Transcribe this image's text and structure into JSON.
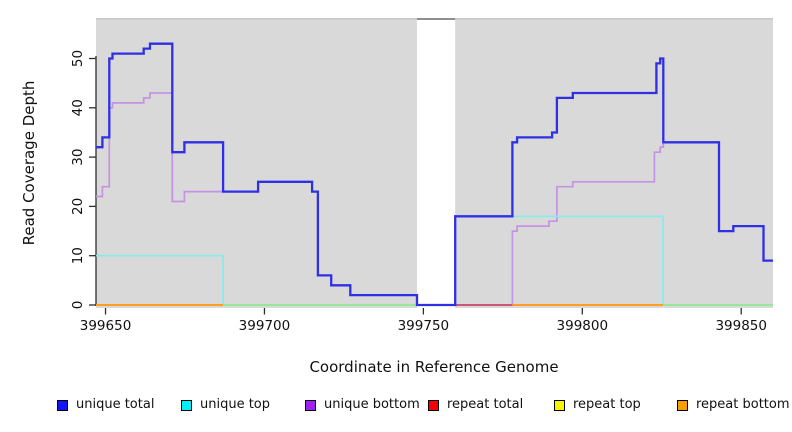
{
  "figure": {
    "background": "#ffffff",
    "plot_background": "#d9d9d9",
    "gap_band_color": "#ffffff",
    "axis_color": "#2e2e2e"
  },
  "chart_data": {
    "type": "line",
    "step_style": "post",
    "title": "",
    "xlabel": "Coordinate in Reference Genome",
    "ylabel": "Read Coverage Depth",
    "xlim": [
      399647,
      399860
    ],
    "ylim": [
      0,
      58
    ],
    "x_ticks": [
      399650,
      399700,
      399750,
      399800,
      399850
    ],
    "y_ticks": [
      0,
      10,
      20,
      30,
      40,
      50
    ],
    "grid": false,
    "legend_position": "bottom",
    "gap_region": {
      "from": 399748,
      "to": 399760
    },
    "series": [
      {
        "name": "unique total",
        "color": "#2f2fe3",
        "legend_color": "#1414f5",
        "steps": [
          [
            399647,
            32
          ],
          [
            399649,
            34
          ],
          [
            399651.2,
            50
          ],
          [
            399652.2,
            51
          ],
          [
            399662,
            52
          ],
          [
            399664,
            53
          ],
          [
            399671,
            31
          ],
          [
            399674.8,
            33
          ],
          [
            399687,
            23
          ],
          [
            399698,
            25
          ],
          [
            399715,
            23
          ],
          [
            399716.8,
            6
          ],
          [
            399721,
            4
          ],
          [
            399727,
            2
          ],
          [
            399748,
            0
          ],
          [
            399760,
            18
          ],
          [
            399778,
            33
          ],
          [
            399779.5,
            34
          ],
          [
            399790.5,
            35
          ],
          [
            399792,
            42
          ],
          [
            399797,
            43
          ],
          [
            399823.3,
            49
          ],
          [
            399824.5,
            50
          ],
          [
            399825.5,
            33
          ],
          [
            399843,
            15
          ],
          [
            399847.5,
            16
          ],
          [
            399857,
            9
          ]
        ]
      },
      {
        "name": "unique top",
        "color": "#85ecec",
        "legend_color": "#00f0f5",
        "steps": [
          [
            399647,
            10
          ],
          [
            399687,
            0
          ],
          [
            399760,
            18
          ],
          [
            399825.4,
            0
          ]
        ]
      },
      {
        "name": "unique bottom",
        "color": "#c493e3",
        "legend_color": "#a020f0",
        "steps": [
          [
            399647,
            22
          ],
          [
            399649,
            24
          ],
          [
            399651.2,
            40
          ],
          [
            399652.2,
            41
          ],
          [
            399662,
            42
          ],
          [
            399664,
            43
          ],
          [
            399671,
            21
          ],
          [
            399674.8,
            23
          ],
          [
            399698,
            25
          ],
          [
            399715,
            23
          ],
          [
            399716.8,
            6
          ],
          [
            399721,
            4
          ],
          [
            399727,
            2
          ],
          [
            399748,
            0
          ],
          [
            399778,
            15
          ],
          [
            399779.5,
            16
          ],
          [
            399789.5,
            17
          ],
          [
            399792,
            24
          ],
          [
            399797,
            25
          ],
          [
            399822.7,
            31
          ],
          [
            399824.5,
            32
          ],
          [
            399825.5,
            33
          ],
          [
            399843,
            15
          ],
          [
            399847.5,
            16
          ],
          [
            399857,
            9
          ]
        ]
      },
      {
        "name": "repeat total",
        "color": "#e32020",
        "legend_color": "#f50000",
        "steps": [
          [
            399647,
            0
          ]
        ]
      },
      {
        "name": "repeat top",
        "color": "#f0f000",
        "legend_color": "#f5f500",
        "steps": [
          [
            399647,
            0
          ]
        ]
      },
      {
        "name": "repeat bottom",
        "color": "#ff9d1f",
        "legend_color": "#f5a000",
        "steps": [
          [
            399647,
            0
          ]
        ]
      }
    ],
    "baseline_visible_segments": [
      {
        "from": 399647,
        "to": 399687,
        "color": "#ff9d24"
      },
      {
        "from": 399687,
        "to": 399748,
        "color": "#98e698"
      },
      {
        "from": 399760,
        "to": 399778,
        "color": "#c85876"
      },
      {
        "from": 399778,
        "to": 399825.4,
        "color": "#ff9d24"
      },
      {
        "from": 399825.4,
        "to": 399860,
        "color": "#98e698"
      }
    ]
  }
}
